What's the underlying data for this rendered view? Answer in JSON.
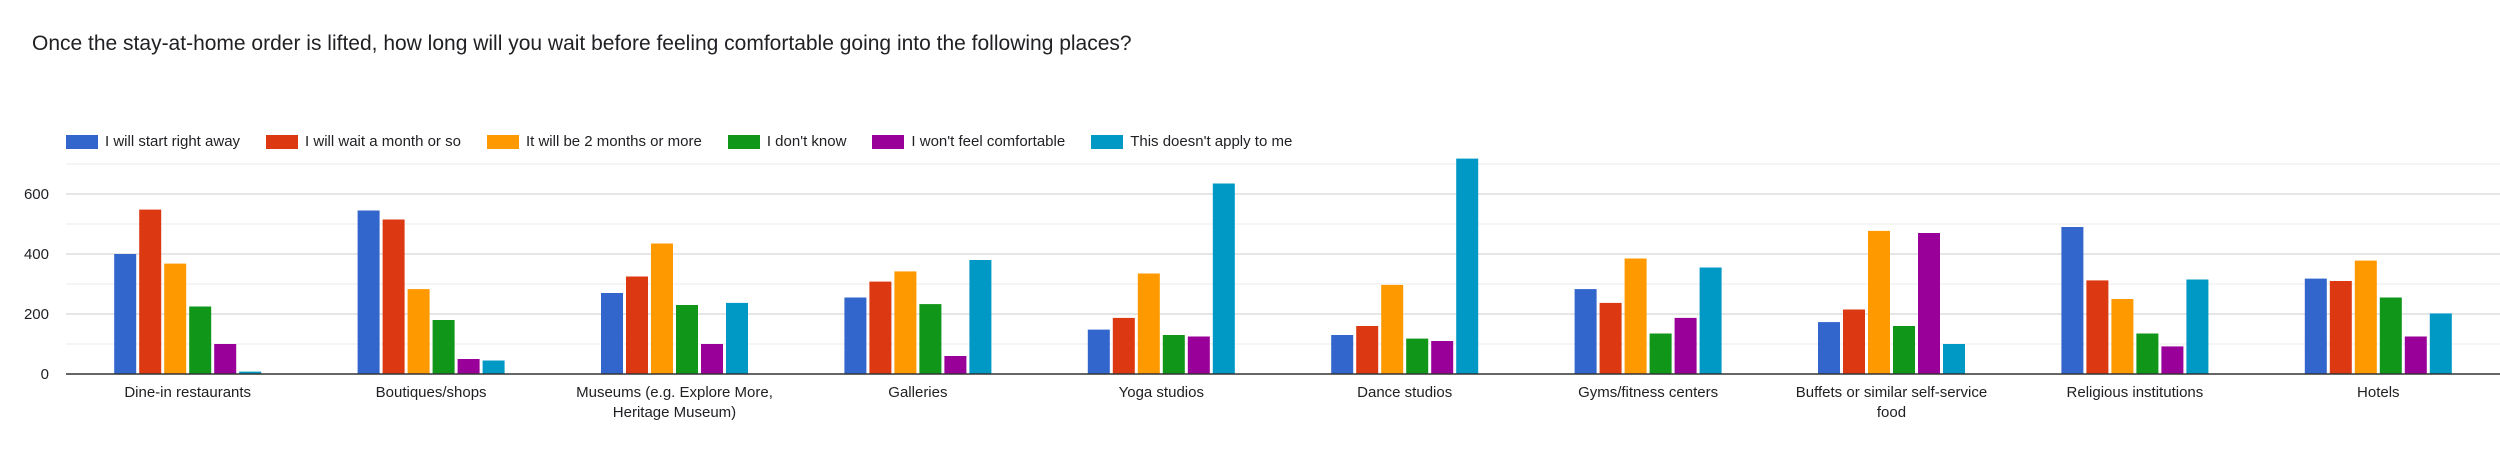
{
  "chart_data": {
    "type": "bar",
    "title": "Once the stay-at-home order is lifted, how long will you wait before feeling comfortable going into the following places?",
    "xlabel": "",
    "ylabel": "",
    "ylim": [
      0,
      720
    ],
    "yticks": [
      0,
      200,
      400,
      600
    ],
    "grid": true,
    "legend_position": "top-left",
    "categories": [
      [
        "Dine-in restaurants"
      ],
      [
        "Boutiques/shops"
      ],
      [
        "Museums (e.g. Explore More,",
        "Heritage Museum)"
      ],
      [
        "Galleries"
      ],
      [
        "Yoga studios"
      ],
      [
        "Dance studios"
      ],
      [
        "Gyms/fitness centers"
      ],
      [
        "Buffets or similar self-service",
        "food"
      ],
      [
        "Religious institutions"
      ],
      [
        "Hotels"
      ]
    ],
    "series": [
      {
        "name": "I will start right away",
        "color": "#3366cc",
        "values": [
          400,
          545,
          270,
          255,
          148,
          130,
          283,
          173,
          490,
          318
        ]
      },
      {
        "name": "I will wait a month or so",
        "color": "#dc3912",
        "values": [
          548,
          515,
          325,
          308,
          187,
          160,
          237,
          215,
          312,
          310
        ]
      },
      {
        "name": "It will be 2 months or more",
        "color": "#ff9900",
        "values": [
          368,
          283,
          435,
          342,
          335,
          297,
          385,
          477,
          250,
          378
        ]
      },
      {
        "name": "I don't know",
        "color": "#109618",
        "values": [
          225,
          180,
          230,
          233,
          130,
          118,
          135,
          160,
          135,
          255
        ]
      },
      {
        "name": "I won't feel comfortable",
        "color": "#990099",
        "values": [
          100,
          50,
          100,
          60,
          125,
          110,
          187,
          470,
          92,
          125
        ]
      },
      {
        "name": "This doesn't apply to me",
        "color": "#0099c6",
        "values": [
          8,
          45,
          237,
          380,
          635,
          718,
          355,
          100,
          315,
          202
        ]
      }
    ]
  }
}
